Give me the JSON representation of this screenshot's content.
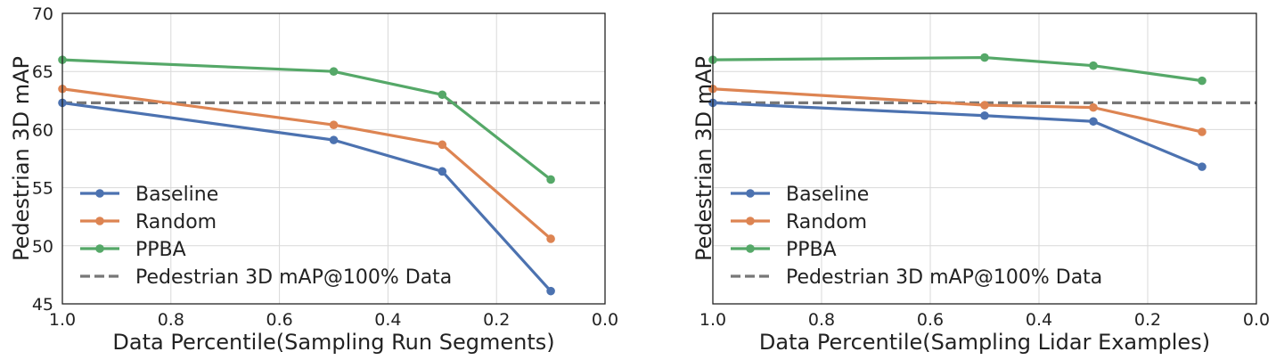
{
  "chart_data": [
    {
      "type": "line",
      "xlabel": "Data Percentile(Sampling Run Segments)",
      "ylabel": "Pedestrian 3D mAP",
      "xlim": [
        1.0,
        0.0
      ],
      "ylim": [
        45,
        70
      ],
      "x_ticks": [
        "1.0",
        "0.8",
        "0.6",
        "0.4",
        "0.2",
        "0.0"
      ],
      "y_ticks": [
        "45",
        "50",
        "55",
        "60",
        "65",
        "70"
      ],
      "grid": true,
      "legend_position": "lower-left",
      "x": [
        1.0,
        0.5,
        0.3,
        0.1
      ],
      "series": [
        {
          "name": "Baseline",
          "color": "#4c72b0",
          "values": [
            62.3,
            59.1,
            56.4,
            46.1
          ]
        },
        {
          "name": "Random",
          "color": "#dd8452",
          "values": [
            63.5,
            60.4,
            58.7,
            50.6
          ]
        },
        {
          "name": "PPBA",
          "color": "#55a868",
          "values": [
            66.0,
            65.0,
            63.0,
            55.7
          ]
        }
      ],
      "reference_line": {
        "name": "Pedestrian 3D mAP@100% Data",
        "value": 62.3,
        "color": "#777777",
        "style": "dashed"
      }
    },
    {
      "type": "line",
      "xlabel": "Data Percentile(Sampling Lidar Examples)",
      "ylabel": "Pedestrian 3D mAP",
      "xlim": [
        1.0,
        0.0
      ],
      "ylim": [
        45,
        70
      ],
      "x_ticks": [
        "1.0",
        "0.8",
        "0.6",
        "0.4",
        "0.2",
        "0.0"
      ],
      "y_ticks": [],
      "grid": true,
      "legend_position": "lower-left",
      "x": [
        1.0,
        0.5,
        0.3,
        0.1
      ],
      "series": [
        {
          "name": "Baseline",
          "color": "#4c72b0",
          "values": [
            62.3,
            61.2,
            60.7,
            56.8
          ]
        },
        {
          "name": "Random",
          "color": "#dd8452",
          "values": [
            63.5,
            62.1,
            61.9,
            59.8
          ]
        },
        {
          "name": "PPBA",
          "color": "#55a868",
          "values": [
            66.0,
            66.2,
            65.5,
            64.2
          ]
        }
      ],
      "reference_line": {
        "name": "Pedestrian 3D mAP@100% Data",
        "value": 62.3,
        "color": "#777777",
        "style": "dashed"
      }
    }
  ]
}
